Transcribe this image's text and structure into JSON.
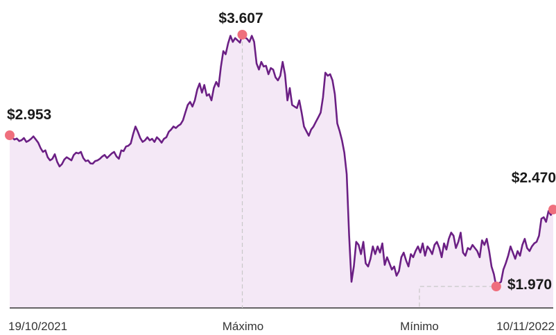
{
  "chart_data": {
    "type": "area",
    "title": "",
    "xlabel": "",
    "ylabel": "",
    "ylim": [
      1800,
      3700
    ],
    "grid": false,
    "colors": {
      "line": "#6b1f84",
      "fill": "#f4e8f6",
      "marker": "#ef6f7d",
      "baseline": "#333333",
      "guide": "#c8c8c8"
    },
    "x_ticks": [
      "19/10/2021",
      "Máximo",
      "Mínimo",
      "10/11/2022"
    ],
    "annotations": [
      {
        "name": "start",
        "label": "$2.953",
        "value": 2953
      },
      {
        "name": "max",
        "label": "$3.607",
        "value": 3607
      },
      {
        "name": "min",
        "label": "$1.970",
        "value": 1970
      },
      {
        "name": "end",
        "label": "$2.470",
        "value": 2470
      }
    ],
    "series": [
      {
        "values": [
          2953,
          2940,
          2925,
          2932,
          2915,
          2921,
          2935,
          2910,
          2918,
          2930,
          2946,
          2925,
          2905,
          2870,
          2845,
          2855,
          2810,
          2790,
          2800,
          2830,
          2780,
          2750,
          2765,
          2795,
          2810,
          2800,
          2790,
          2825,
          2840,
          2835,
          2845,
          2805,
          2785,
          2790,
          2770,
          2768,
          2785,
          2790,
          2800,
          2815,
          2825,
          2805,
          2820,
          2835,
          2845,
          2815,
          2800,
          2855,
          2850,
          2880,
          2885,
          2900,
          2960,
          3010,
          2975,
          2935,
          2910,
          2920,
          2940,
          2920,
          2930,
          2910,
          2940,
          2925,
          2905,
          2930,
          2940,
          2975,
          2990,
          3010,
          3000,
          3015,
          3025,
          3050,
          3100,
          3150,
          3170,
          3140,
          3180,
          3250,
          3290,
          3230,
          3280,
          3210,
          3220,
          3180,
          3260,
          3300,
          3270,
          3400,
          3500,
          3480,
          3550,
          3600,
          3560,
          3585,
          3570,
          3555,
          3607,
          3590,
          3580,
          3560,
          3600,
          3560,
          3420,
          3380,
          3430,
          3400,
          3405,
          3350,
          3390,
          3380,
          3330,
          3310,
          3340,
          3430,
          3350,
          3180,
          3260,
          3150,
          3140,
          3130,
          3180,
          3100,
          3010,
          2980,
          2950,
          2990,
          3010,
          3040,
          3070,
          3100,
          3200,
          3360,
          3340,
          3350,
          3310,
          3220,
          3030,
          2980,
          2920,
          2840,
          2700,
          2300,
          2000,
          2100,
          2260,
          2240,
          2180,
          2260,
          2120,
          2100,
          2150,
          2230,
          2180,
          2230,
          2190,
          2250,
          2110,
          2160,
          2120,
          2080,
          2100,
          2040,
          2070,
          2160,
          2190,
          2140,
          2100,
          2180,
          2160,
          2200,
          2230,
          2190,
          2250,
          2170,
          2230,
          2210,
          2180,
          2240,
          2260,
          2220,
          2160,
          2250,
          2210,
          2280,
          2320,
          2300,
          2220,
          2260,
          2320,
          2190,
          2170,
          2220,
          2210,
          2240,
          2220,
          2200,
          2160,
          2270,
          2240,
          2280,
          2200,
          2100,
          2050,
          1970,
          1990,
          2000,
          2080,
          2120,
          2170,
          2230,
          2190,
          2150,
          2200,
          2170,
          2240,
          2280,
          2220,
          2200,
          2230,
          2250,
          2260,
          2300,
          2410,
          2420,
          2390,
          2460,
          2435,
          2470
        ]
      }
    ]
  }
}
